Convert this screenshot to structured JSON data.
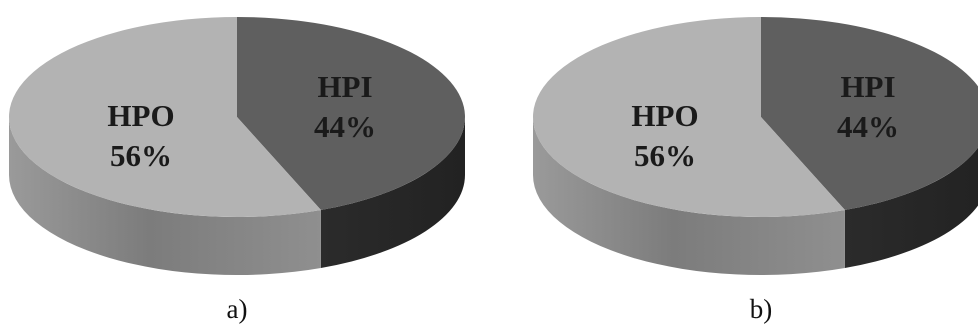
{
  "chart_data": [
    {
      "type": "pie",
      "style": "3d",
      "panel_label": "a)",
      "slices": [
        {
          "name": "HPI",
          "value": 44,
          "label": "44%",
          "color": "#5f5f5f",
          "side_color": "#2a2a2a"
        },
        {
          "name": "HPO",
          "value": 56,
          "label": "56%",
          "color": "#b3b3b3",
          "side_color": "#8a8a8a"
        }
      ]
    },
    {
      "type": "pie",
      "style": "3d",
      "panel_label": "b)",
      "slices": [
        {
          "name": "HPI",
          "value": 44,
          "label": "44%",
          "color": "#5f5f5f",
          "side_color": "#2a2a2a"
        },
        {
          "name": "HPO",
          "value": 56,
          "label": "56%",
          "color": "#b3b3b3",
          "side_color": "#8a8a8a"
        }
      ]
    }
  ]
}
